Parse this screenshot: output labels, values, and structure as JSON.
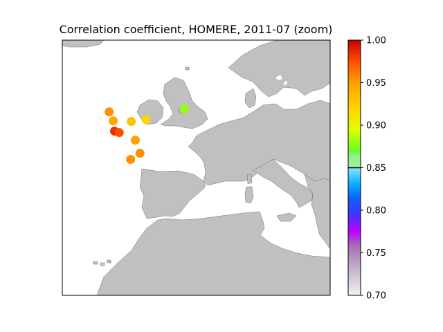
{
  "chart_data": {
    "type": "scatter",
    "title": "Correlation coefficient, HOMERE, 2011-07 (zoom)",
    "xlabel": "",
    "ylabel": "",
    "xlim": [
      -20,
      20
    ],
    "ylim": [
      25,
      62
    ],
    "background_map": "Western Europe and North Africa coastline",
    "land_color": "#c0c0c0",
    "points": [
      {
        "lon": -13.0,
        "lat": 51.6,
        "value": 0.955
      },
      {
        "lon": -12.4,
        "lat": 50.3,
        "value": 0.945
      },
      {
        "lon": -12.2,
        "lat": 48.8,
        "value": 0.985
      },
      {
        "lon": -11.5,
        "lat": 48.6,
        "value": 0.975
      },
      {
        "lon": -9.7,
        "lat": 50.2,
        "value": 0.93
      },
      {
        "lon": -7.5,
        "lat": 50.5,
        "value": 0.92
      },
      {
        "lon": -2.0,
        "lat": 51.9,
        "value": 0.74
      },
      {
        "lon": -1.8,
        "lat": 52.0,
        "value": 0.88
      },
      {
        "lon": -9.1,
        "lat": 47.5,
        "value": 0.95
      },
      {
        "lon": -8.4,
        "lat": 45.6,
        "value": 0.955
      },
      {
        "lon": -9.8,
        "lat": 44.7,
        "value": 0.955
      }
    ],
    "colorbar": {
      "min": 0.7,
      "max": 1.0,
      "ticks": [
        "0.70",
        "0.75",
        "0.80",
        "0.85",
        "0.90",
        "0.95",
        "1.00"
      ],
      "marker_line": 0.85
    }
  }
}
